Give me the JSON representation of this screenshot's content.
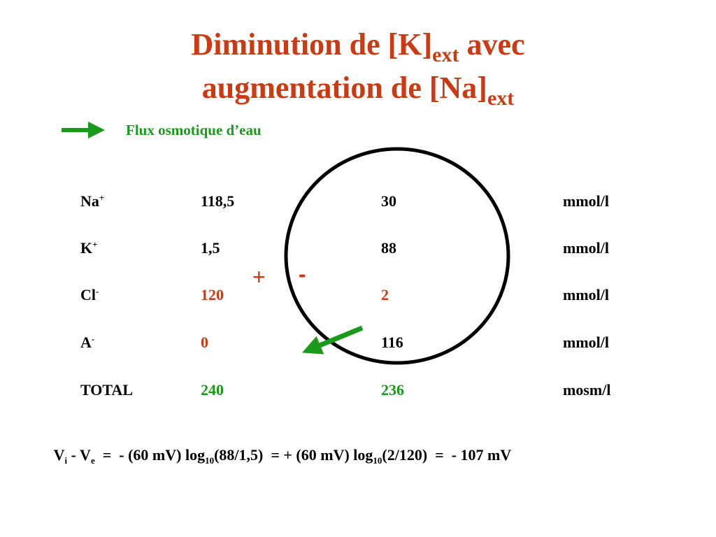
{
  "title": {
    "line1": {
      "text": "Diminution de [K]",
      "sub": "ext",
      "tail": " avec"
    },
    "line2": {
      "text": "augmentation de [Na]",
      "sub": "ext"
    }
  },
  "legend": {
    "label": "Flux osmotique d’eau"
  },
  "signs": {
    "plus": "+",
    "minus": "-"
  },
  "table": {
    "rows": [
      {
        "ion": "Na",
        "charge": "+",
        "ext": "118,5",
        "int": "30",
        "unit": "mmol/l"
      },
      {
        "ion": "K",
        "charge": "+",
        "ext": "1,5",
        "int": "88",
        "unit": "mmol/l"
      },
      {
        "ion": "Cl",
        "charge": "-",
        "ext": "120",
        "int": "2",
        "unit": "mmol/l"
      },
      {
        "ion": "A",
        "charge": "-",
        "ext": "0",
        "int": "116",
        "unit": "mmol/l"
      },
      {
        "ion": "TOTAL",
        "ext": "240",
        "int": "236",
        "unit": "mosm/l"
      }
    ]
  },
  "equation": {
    "parts": [
      "V",
      "i",
      " - V",
      "e",
      "  =  - (60 mV) log",
      "10",
      "(88/1,5)  = + (60 mV) log",
      "10",
      "(2/120)  =  - 107 mV"
    ]
  }
}
